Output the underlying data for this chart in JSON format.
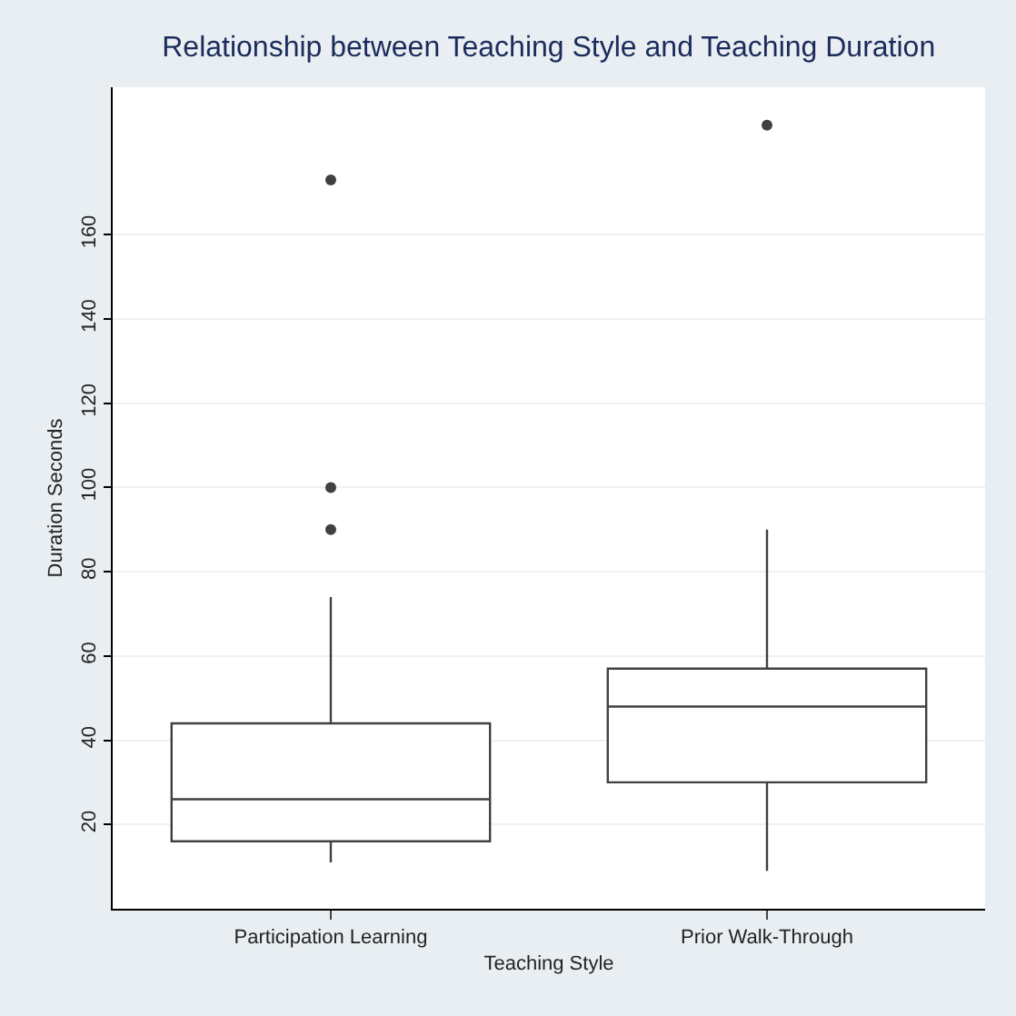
{
  "chart_data": {
    "type": "box",
    "title": "Relationship between Teaching Style and Teaching Duration",
    "xlabel": "Teaching Style",
    "ylabel": "Duration Seconds",
    "categories": [
      "Participation Learning",
      "Prior Walk-Through"
    ],
    "boxes": [
      {
        "low": 11,
        "q1": 16,
        "median": 26,
        "q3": 44,
        "high": 74,
        "outliers": [
          90,
          100,
          173
        ]
      },
      {
        "low": 9,
        "q1": 30,
        "median": 48,
        "q3": 57,
        "high": 90,
        "outliers": [
          186
        ]
      }
    ],
    "color": "#404040",
    "ylim": [
      0,
      195
    ],
    "yticks": [
      20,
      40,
      60,
      80,
      100,
      120,
      140,
      160
    ],
    "grid": "y"
  }
}
